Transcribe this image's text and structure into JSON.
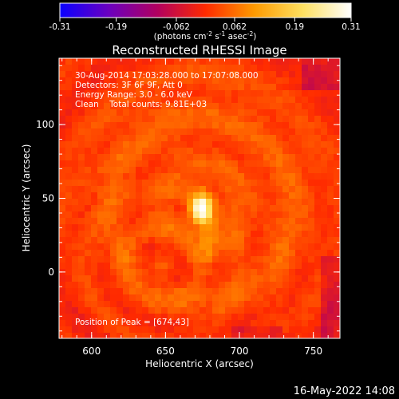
{
  "chart_data": {
    "type": "heatmap",
    "title": "Reconstructed RHESSI Image",
    "xlabel": "Heliocentric X (arcsec)",
    "ylabel": "Heliocentric Y (arcsec)",
    "xlim": [
      578,
      768
    ],
    "ylim": [
      -45,
      145
    ],
    "x_ticks": [
      {
        "value": 600,
        "label": "600"
      },
      {
        "value": 650,
        "label": "650"
      },
      {
        "value": 700,
        "label": "700"
      },
      {
        "value": 750,
        "label": "750"
      }
    ],
    "y_ticks": [
      {
        "value": 0,
        "label": "0"
      },
      {
        "value": 50,
        "label": "50"
      },
      {
        "value": 100,
        "label": "100"
      }
    ],
    "colorbar": {
      "range": [
        -0.31,
        0.31
      ],
      "tick_labels": [
        "-0.31",
        "-0.19",
        "-0.062",
        "0.062",
        "0.19",
        "0.31"
      ],
      "tick_values": [
        -0.31,
        -0.19,
        -0.062,
        0.062,
        0.19,
        0.31
      ],
      "label_main": "(photons cm",
      "label_sup1": "-2",
      "label_mid1": " s",
      "label_sup2": "-1",
      "label_mid2": " asec",
      "label_sup3": "-2",
      "label_end": ")",
      "colors": [
        "#0a00ff",
        "#6a00c0",
        "#b00060",
        "#ff2a00",
        "#ff9a00",
        "#ffe060",
        "#ffffff"
      ]
    },
    "info_lines": [
      "30-Aug-2014 17:03:28.000 to 17:07:08.000",
      "Detectors: 3F 6F 9F, Att 0",
      "Energy Range: 3.0 - 6.0 keV",
      "Clean    Total counts: 9.81E+03"
    ],
    "peak_label": "Position of Peak = [674,43]",
    "peak": {
      "x": 674,
      "y": 43,
      "value": 0.31
    },
    "sources": [
      {
        "x": 674,
        "y": 43,
        "sx": 5,
        "sy": 7,
        "amp": 0.31
      },
      {
        "x": 680,
        "y": 25,
        "sx": 4,
        "sy": 10,
        "amp": 0.07
      }
    ],
    "footer_date": "16-May-2022 14:08"
  }
}
